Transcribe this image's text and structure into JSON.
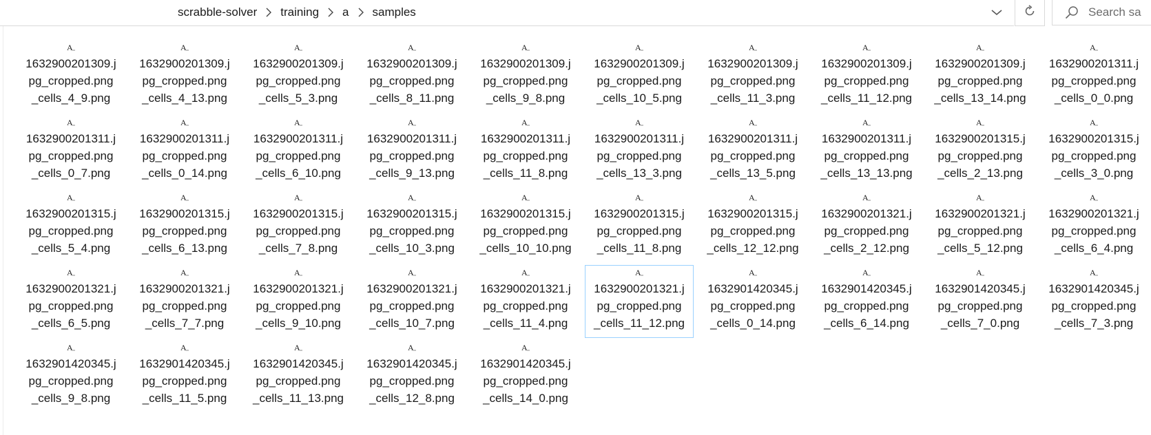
{
  "breadcrumb": {
    "items": [
      "scrabble-solver",
      "training",
      "a",
      "samples"
    ]
  },
  "search": {
    "placeholder": "Search sa"
  },
  "files": [
    {
      "name": "1632900201309.jpg_cropped.png_cells_4_9.png",
      "lines": [
        "1632900201309.j",
        "pg_cropped.png",
        "_cells_4_9.png"
      ],
      "icon": "font-file-icon"
    },
    {
      "name": "1632900201309.jpg_cropped.png_cells_4_13.png",
      "lines": [
        "1632900201309.j",
        "pg_cropped.png",
        "_cells_4_13.png"
      ],
      "icon": "font-file-icon"
    },
    {
      "name": "1632900201309.jpg_cropped.png_cells_5_3.png",
      "lines": [
        "1632900201309.j",
        "pg_cropped.png",
        "_cells_5_3.png"
      ],
      "icon": "font-file-icon"
    },
    {
      "name": "1632900201309.jpg_cropped.png_cells_8_11.png",
      "lines": [
        "1632900201309.j",
        "pg_cropped.png",
        "_cells_8_11.png"
      ],
      "icon": "font-file-icon"
    },
    {
      "name": "1632900201309.jpg_cropped.png_cells_9_8.png",
      "lines": [
        "1632900201309.j",
        "pg_cropped.png",
        "_cells_9_8.png"
      ],
      "icon": "font-file-icon"
    },
    {
      "name": "1632900201309.jpg_cropped.png_cells_10_5.png",
      "lines": [
        "1632900201309.j",
        "pg_cropped.png",
        "_cells_10_5.png"
      ],
      "icon": "font-file-icon"
    },
    {
      "name": "1632900201309.jpg_cropped.png_cells_11_3.png",
      "lines": [
        "1632900201309.j",
        "pg_cropped.png",
        "_cells_11_3.png"
      ],
      "icon": "font-file-icon"
    },
    {
      "name": "1632900201309.jpg_cropped.png_cells_11_12.png",
      "lines": [
        "1632900201309.j",
        "pg_cropped.png",
        "_cells_11_12.png"
      ],
      "icon": "font-file-icon"
    },
    {
      "name": "1632900201309.jpg_cropped.png_cells_13_14.png",
      "lines": [
        "1632900201309.j",
        "pg_cropped.png",
        "_cells_13_14.png"
      ],
      "icon": "font-file-icon"
    },
    {
      "name": "1632900201311.jpg_cropped.png_cells_0_0.png",
      "lines": [
        "1632900201311.j",
        "pg_cropped.png",
        "_cells_0_0.png"
      ],
      "icon": "font-file-icon"
    },
    {
      "name": "1632900201311.jpg_cropped.png_cells_0_7.png",
      "lines": [
        "1632900201311.j",
        "pg_cropped.png",
        "_cells_0_7.png"
      ],
      "icon": "font-file-icon"
    },
    {
      "name": "1632900201311.jpg_cropped.png_cells_0_14.png",
      "lines": [
        "1632900201311.j",
        "pg_cropped.png",
        "_cells_0_14.png"
      ],
      "icon": "font-file-icon"
    },
    {
      "name": "1632900201311.jpg_cropped.png_cells_6_10.png",
      "lines": [
        "1632900201311.j",
        "pg_cropped.png",
        "_cells_6_10.png"
      ],
      "icon": "font-file-icon"
    },
    {
      "name": "1632900201311.jpg_cropped.png_cells_9_13.png",
      "lines": [
        "1632900201311.j",
        "pg_cropped.png",
        "_cells_9_13.png"
      ],
      "icon": "font-file-icon"
    },
    {
      "name": "1632900201311.jpg_cropped.png_cells_11_8.png",
      "lines": [
        "1632900201311.j",
        "pg_cropped.png",
        "_cells_11_8.png"
      ],
      "icon": "font-file-icon"
    },
    {
      "name": "1632900201311.jpg_cropped.png_cells_13_3.png",
      "lines": [
        "1632900201311.j",
        "pg_cropped.png",
        "_cells_13_3.png"
      ],
      "icon": "font-file-icon"
    },
    {
      "name": "1632900201311.jpg_cropped.png_cells_13_5.png",
      "lines": [
        "1632900201311.j",
        "pg_cropped.png",
        "_cells_13_5.png"
      ],
      "icon": "font-file-icon"
    },
    {
      "name": "1632900201311.jpg_cropped.png_cells_13_13.png",
      "lines": [
        "1632900201311.j",
        "pg_cropped.png",
        "_cells_13_13.png"
      ],
      "icon": "font-file-icon"
    },
    {
      "name": "1632900201315.jpg_cropped.png_cells_2_13.png",
      "lines": [
        "1632900201315.j",
        "pg_cropped.png",
        "_cells_2_13.png"
      ],
      "icon": "font-file-icon"
    },
    {
      "name": "1632900201315.jpg_cropped.png_cells_3_0.png",
      "lines": [
        "1632900201315.j",
        "pg_cropped.png",
        "_cells_3_0.png"
      ],
      "icon": "font-file-icon"
    },
    {
      "name": "1632900201315.jpg_cropped.png_cells_5_4.png",
      "lines": [
        "1632900201315.j",
        "pg_cropped.png",
        "_cells_5_4.png"
      ],
      "icon": "font-file-icon"
    },
    {
      "name": "1632900201315.jpg_cropped.png_cells_6_13.png",
      "lines": [
        "1632900201315.j",
        "pg_cropped.png",
        "_cells_6_13.png"
      ],
      "icon": "font-file-icon"
    },
    {
      "name": "1632900201315.jpg_cropped.png_cells_7_8.png",
      "lines": [
        "1632900201315.j",
        "pg_cropped.png",
        "_cells_7_8.png"
      ],
      "icon": "font-file-icon"
    },
    {
      "name": "1632900201315.jpg_cropped.png_cells_10_3.png",
      "lines": [
        "1632900201315.j",
        "pg_cropped.png",
        "_cells_10_3.png"
      ],
      "icon": "font-file-icon"
    },
    {
      "name": "1632900201315.jpg_cropped.png_cells_10_10.png",
      "lines": [
        "1632900201315.j",
        "pg_cropped.png",
        "_cells_10_10.png"
      ],
      "icon": "font-file-icon"
    },
    {
      "name": "1632900201315.jpg_cropped.png_cells_11_8.png",
      "lines": [
        "1632900201315.j",
        "pg_cropped.png",
        "_cells_11_8.png"
      ],
      "icon": "font-file-icon"
    },
    {
      "name": "1632900201315.jpg_cropped.png_cells_12_12.png",
      "lines": [
        "1632900201315.j",
        "pg_cropped.png",
        "_cells_12_12.png"
      ],
      "icon": "font-file-icon"
    },
    {
      "name": "1632900201321.jpg_cropped.png_cells_2_12.png",
      "lines": [
        "1632900201321.j",
        "pg_cropped.png",
        "_cells_2_12.png"
      ],
      "icon": "font-file-icon"
    },
    {
      "name": "1632900201321.jpg_cropped.png_cells_5_12.png",
      "lines": [
        "1632900201321.j",
        "pg_cropped.png",
        "_cells_5_12.png"
      ],
      "icon": "font-file-icon"
    },
    {
      "name": "1632900201321.jpg_cropped.png_cells_6_4.png",
      "lines": [
        "1632900201321.j",
        "pg_cropped.png",
        "_cells_6_4.png"
      ],
      "icon": "font-file-icon"
    },
    {
      "name": "1632900201321.jpg_cropped.png_cells_6_5.png",
      "lines": [
        "1632900201321.j",
        "pg_cropped.png",
        "_cells_6_5.png"
      ],
      "icon": "font-file-icon"
    },
    {
      "name": "1632900201321.jpg_cropped.png_cells_7_7.png",
      "lines": [
        "1632900201321.j",
        "pg_cropped.png",
        "_cells_7_7.png"
      ],
      "icon": "font-file-icon"
    },
    {
      "name": "1632900201321.jpg_cropped.png_cells_9_10.png",
      "lines": [
        "1632900201321.j",
        "pg_cropped.png",
        "_cells_9_10.png"
      ],
      "icon": "font-file-icon"
    },
    {
      "name": "1632900201321.jpg_cropped.png_cells_10_7.png",
      "lines": [
        "1632900201321.j",
        "pg_cropped.png",
        "_cells_10_7.png"
      ],
      "icon": "font-file-icon"
    },
    {
      "name": "1632900201321.jpg_cropped.png_cells_11_4.png",
      "lines": [
        "1632900201321.j",
        "pg_cropped.png",
        "_cells_11_4.png"
      ],
      "icon": "font-file-icon"
    },
    {
      "name": "1632900201321.jpg_cropped.png_cells_11_12.png",
      "lines": [
        "1632900201321.j",
        "pg_cropped.png",
        "_cells_11_12.png"
      ],
      "icon": "font-file-icon",
      "selected": true
    },
    {
      "name": "1632901420345.jpg_cropped.png_cells_0_14.png",
      "lines": [
        "1632901420345.j",
        "pg_cropped.png",
        "_cells_0_14.png"
      ],
      "icon": "font-file-icon"
    },
    {
      "name": "1632901420345.jpg_cropped.png_cells_6_14.png",
      "lines": [
        "1632901420345.j",
        "pg_cropped.png",
        "_cells_6_14.png"
      ],
      "icon": "font-file-icon"
    },
    {
      "name": "1632901420345.jpg_cropped.png_cells_7_0.png",
      "lines": [
        "1632901420345.j",
        "pg_cropped.png",
        "_cells_7_0.png"
      ],
      "icon": "font-file-icon"
    },
    {
      "name": "1632901420345.jpg_cropped.png_cells_7_3.png",
      "lines": [
        "1632901420345.j",
        "pg_cropped.png",
        "_cells_7_3.png"
      ],
      "icon": "font-file-icon"
    },
    {
      "name": "1632901420345.jpg_cropped.png_cells_9_8.png",
      "lines": [
        "1632901420345.j",
        "pg_cropped.png",
        "_cells_9_8.png"
      ],
      "icon": "font-file-icon"
    },
    {
      "name": "1632901420345.jpg_cropped.png_cells_11_5.png",
      "lines": [
        "1632901420345.j",
        "pg_cropped.png",
        "_cells_11_5.png"
      ],
      "icon": "font-file-icon"
    },
    {
      "name": "1632901420345.jpg_cropped.png_cells_11_13.png",
      "lines": [
        "1632901420345.j",
        "pg_cropped.png",
        "_cells_11_13.png"
      ],
      "icon": "font-file-icon"
    },
    {
      "name": "1632901420345.jpg_cropped.png_cells_12_8.png",
      "lines": [
        "1632901420345.j",
        "pg_cropped.png",
        "_cells_12_8.png"
      ],
      "icon": "font-file-icon"
    },
    {
      "name": "1632901420345.jpg_cropped.png_cells_14_0.png",
      "lines": [
        "1632901420345.j",
        "pg_cropped.png",
        "_cells_14_0.png"
      ],
      "icon": "font-file-icon"
    }
  ],
  "colors": {
    "selection_border": "#99d1ff",
    "divider": "#d9d9d9",
    "text": "#1a1a1a",
    "placeholder": "#6b6b6b"
  },
  "icons": {
    "breadcrumb_separator": "chevron-right-icon",
    "history_dropdown": "chevron-down-icon",
    "refresh": "refresh-icon",
    "search": "search-icon",
    "file": "font-file-icon"
  }
}
